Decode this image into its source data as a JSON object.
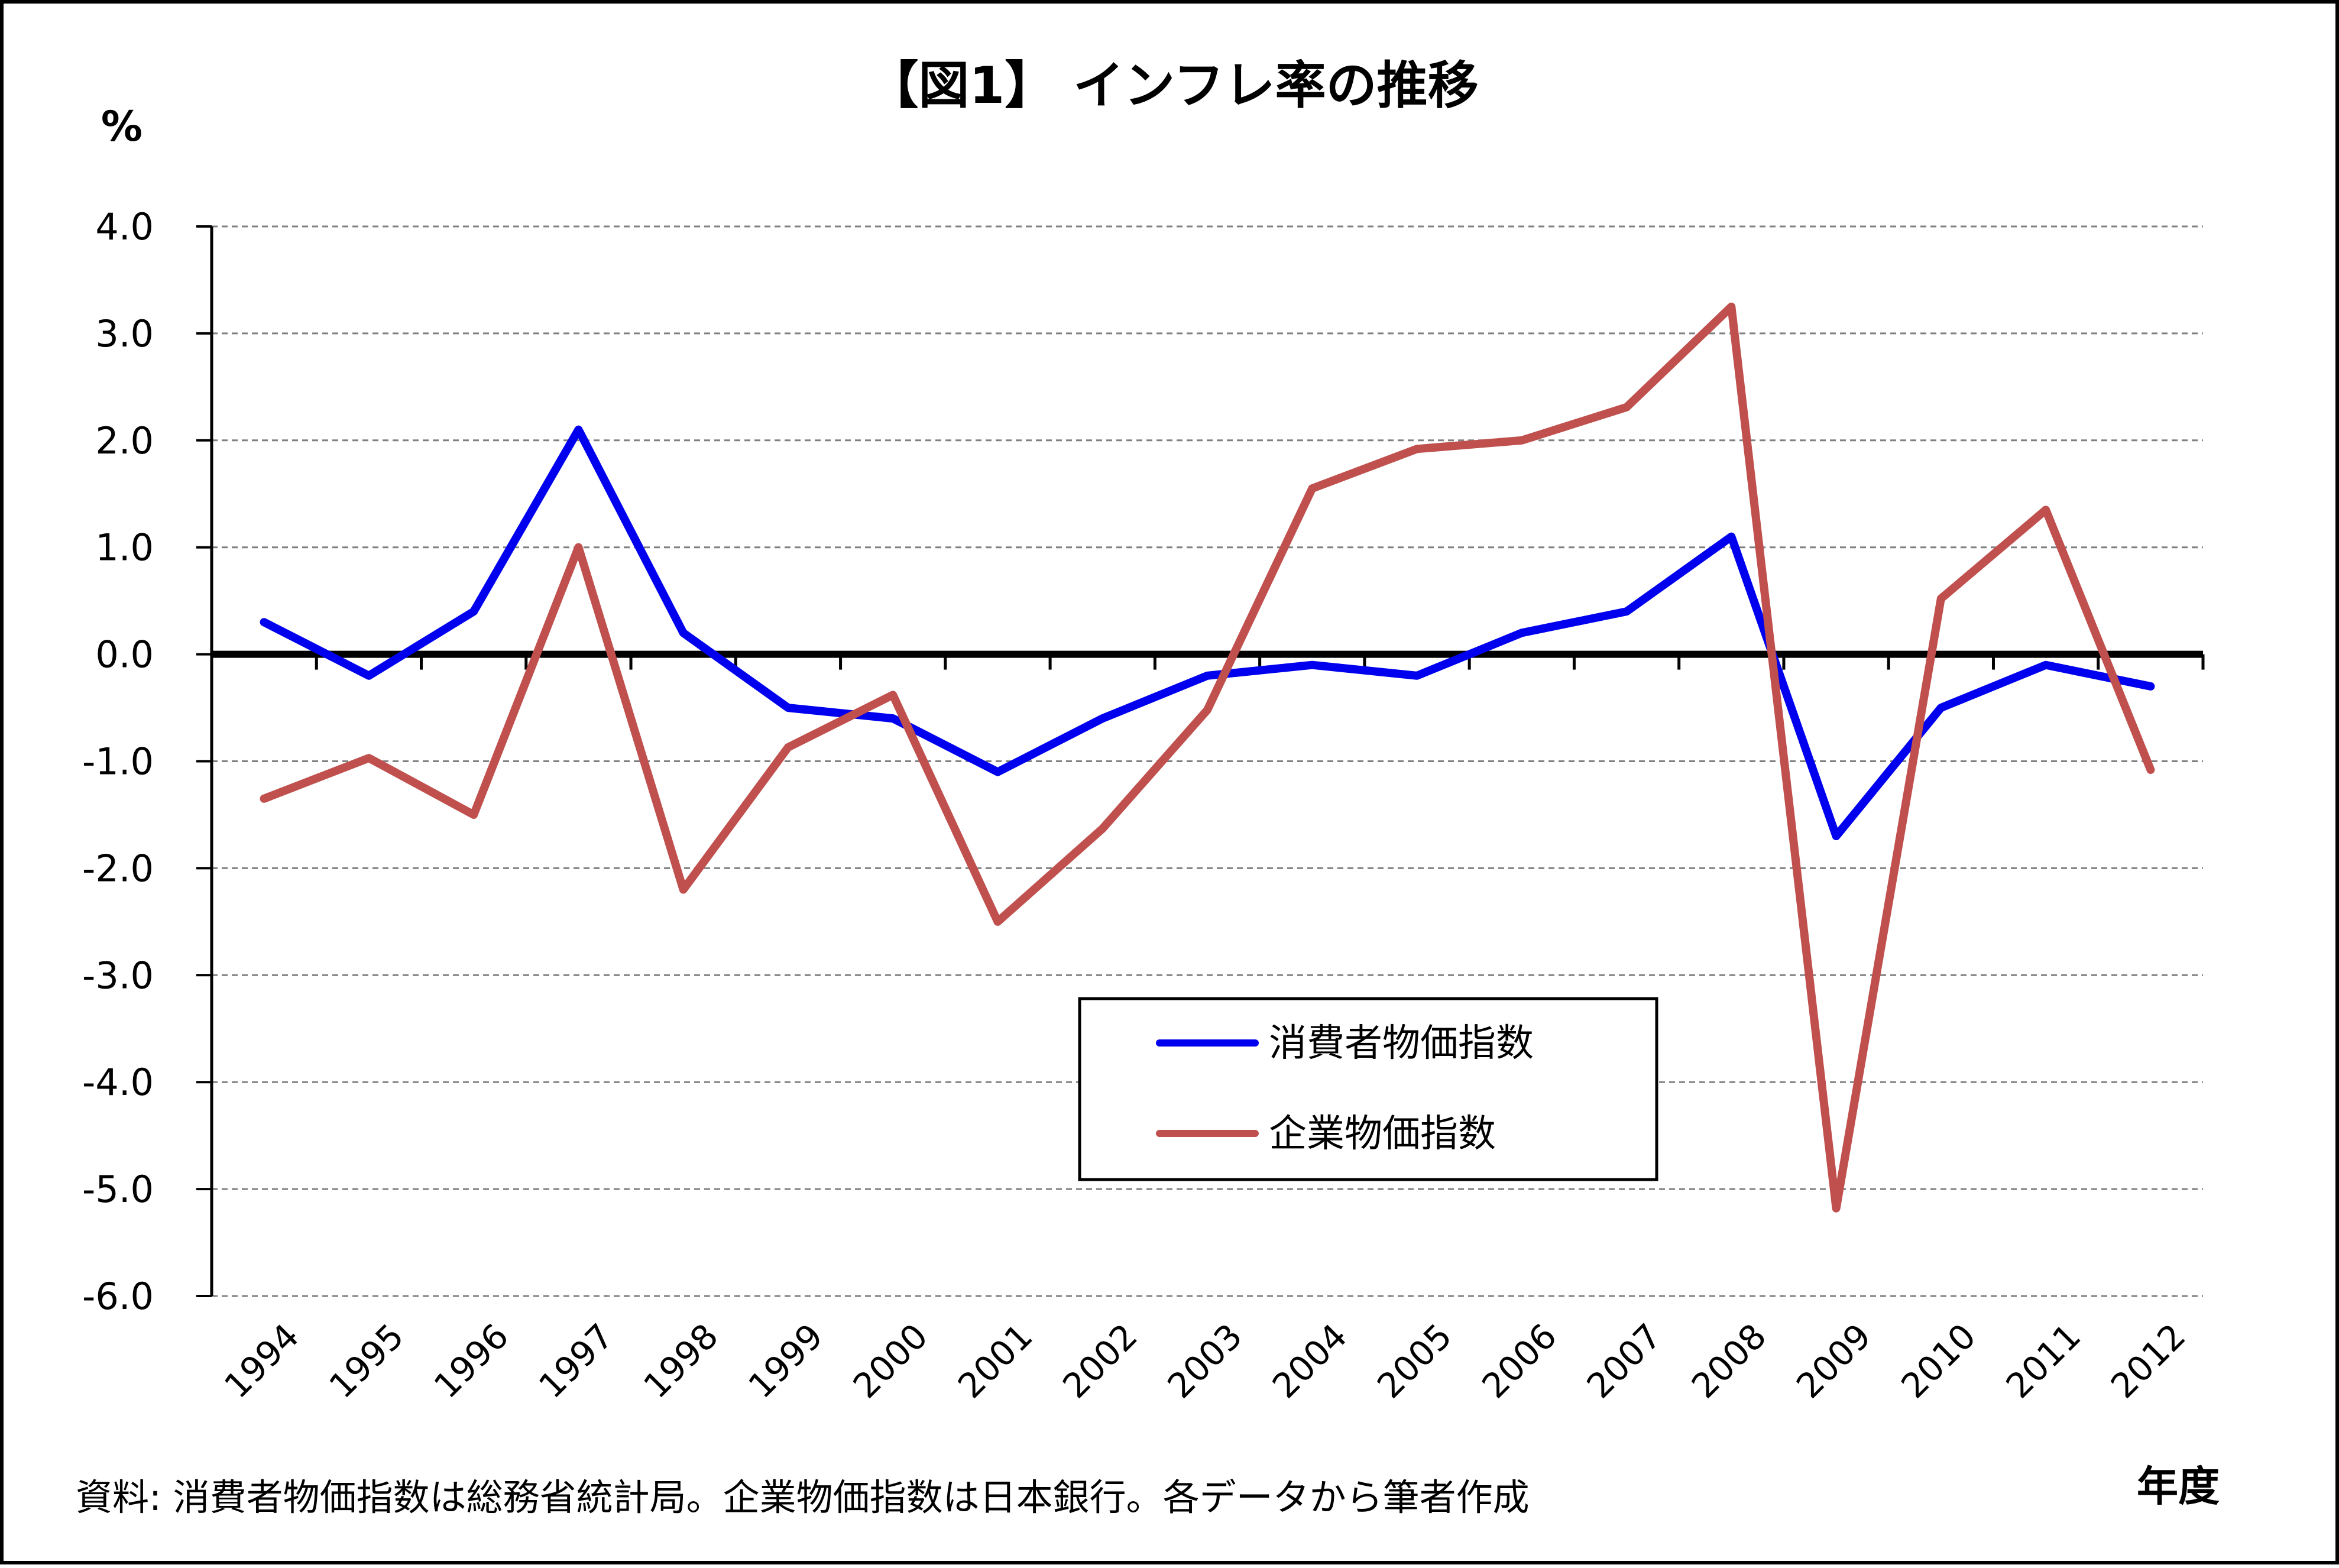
{
  "chart_data": {
    "type": "line",
    "title": "【図1】 インフレ率の推移",
    "ylabel": "%",
    "xlabel": "年度",
    "source": "資料: 消費者物価指数は総務省統計局。企業物価指数は日本銀行。各データから筆者作成",
    "ylim": [
      -6.0,
      4.0
    ],
    "yticks": [
      4.0,
      3.0,
      2.0,
      1.0,
      0.0,
      -1.0,
      -2.0,
      -3.0,
      -4.0,
      -5.0,
      -6.0
    ],
    "categories": [
      "1994",
      "1995",
      "1996",
      "1997",
      "1998",
      "1999",
      "2000",
      "2001",
      "2002",
      "2003",
      "2004",
      "2005",
      "2006",
      "2007",
      "2008",
      "2009",
      "2010",
      "2011",
      "2012"
    ],
    "grid": true,
    "legend_position": "inside-lower-center",
    "series": [
      {
        "name": "消費者物価指数",
        "color": "#0000ee",
        "values": [
          0.3,
          -0.2,
          0.4,
          2.1,
          0.2,
          -0.5,
          -0.6,
          -1.1,
          -0.6,
          -0.2,
          -0.1,
          -0.2,
          0.2,
          0.4,
          1.1,
          -1.7,
          -0.5,
          -0.1,
          -0.3
        ]
      },
      {
        "name": "企業物価指数",
        "color": "#c0504d",
        "values": [
          -1.35,
          -0.97,
          -1.5,
          1.0,
          -2.2,
          -0.87,
          -0.38,
          -2.5,
          -1.63,
          -0.52,
          1.55,
          1.92,
          2.0,
          2.31,
          3.25,
          -5.18,
          0.52,
          1.35,
          -1.08
        ]
      }
    ]
  }
}
